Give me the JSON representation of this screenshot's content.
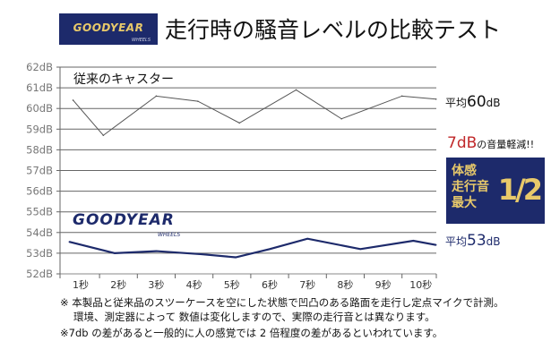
{
  "header": {
    "logo_text": "GOODYEAR",
    "logo_sub": "WHEELS",
    "title": "走行時の騒音レベルの比較テスト"
  },
  "chart_data": {
    "type": "line",
    "title": "走行時の騒音レベルの比較テスト",
    "xlabel": "",
    "ylabel": "",
    "ylim": [
      52,
      62
    ],
    "xlim": [
      0.46,
      10.41
    ],
    "yticks": [
      "52dB",
      "53dB",
      "54dB",
      "55dB",
      "56dB",
      "57dB",
      "58dB",
      "59dB",
      "60dB",
      "61dB",
      "62dB"
    ],
    "xticks": [
      "1秒",
      "2秒",
      "3秒",
      "4秒",
      "5秒",
      "6秒",
      "7秒",
      "8秒",
      "9秒",
      "10秒"
    ],
    "grid": true,
    "series": [
      {
        "name": "従来のキャスター",
        "color": "#555555",
        "x": [
          0.8,
          1.6,
          3.0,
          4.1,
          5.2,
          6.7,
          7.9,
          9.5,
          10.4
        ],
        "values": [
          60.4,
          58.7,
          60.6,
          60.35,
          59.3,
          60.9,
          59.5,
          60.6,
          60.45
        ],
        "avg_label": "平均",
        "avg_value": "60",
        "avg_unit": "dB"
      },
      {
        "name": "GOODYEAR WHEELS",
        "color": "#1d2a6b",
        "x": [
          0.7,
          1.9,
          3.0,
          4.2,
          5.1,
          6.0,
          7.0,
          8.4,
          9.8,
          10.4
        ],
        "values": [
          53.55,
          53.0,
          53.1,
          52.95,
          52.8,
          53.2,
          53.7,
          53.2,
          53.6,
          53.4
        ],
        "avg_label": "平均",
        "avg_value": "53",
        "avg_unit": "dB"
      }
    ],
    "annotations": {
      "reduction_value": "7dB",
      "reduction_text": "の音量軽減!!",
      "badge_text": [
        "体感",
        "走行音",
        "最大"
      ],
      "badge_value": "1/2"
    }
  },
  "legend": {
    "gray_name": "従来のキャスター",
    "brand": "GOODYEAR",
    "brand_sub": "WHEELS"
  },
  "notes": [
    "※ 本製品と従来品のスツーケースを空にした状態で凹凸のある路面を走行し定点マイクで計測。",
    "環境、測定器によって 数値は変化しますので、実際の走行音とは異なります。",
    "※7db の差があると一般的に人の感覚では 2 倍程度の差があるといわれています。"
  ]
}
